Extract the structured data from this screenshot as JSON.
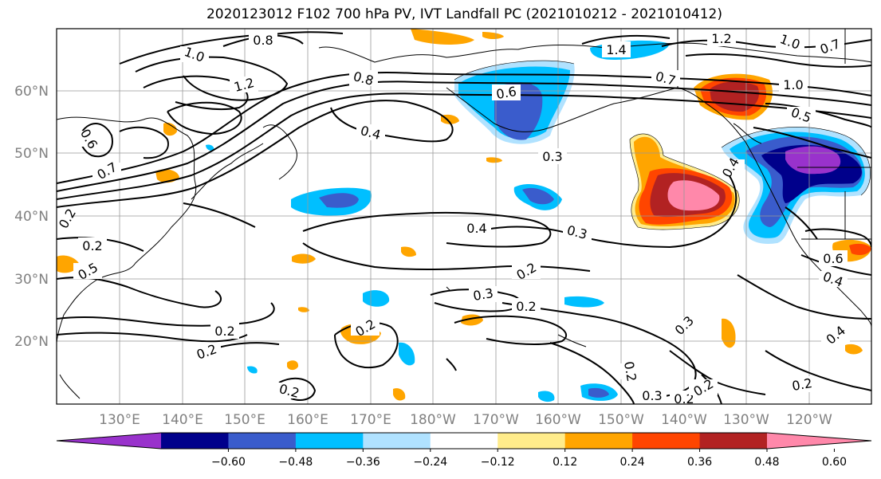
{
  "title": "2020123012 F102 700 hPa PV, IVT Landfall PC (2021010212 - 2021010412)",
  "latitude_labels": [
    "60°N",
    "50°N",
    "40°N",
    "30°N",
    "20°N"
  ],
  "longitude_labels": [
    "130°E",
    "140°E",
    "150°E",
    "160°E",
    "170°E",
    "180°W",
    "170°W",
    "160°W",
    "150°W",
    "140°W",
    "130°W",
    "120°W"
  ],
  "colorbar": {
    "tick_labels": [
      "−0.60",
      "−0.48",
      "−0.36",
      "−0.24",
      "−0.12",
      "0.12",
      "0.24",
      "0.36",
      "0.48",
      "0.60"
    ],
    "colors": [
      "#9932cc",
      "#00008b",
      "#3a5ccc",
      "#00bfff",
      "#b0e2ff",
      "#ffffff",
      "#ffec8b",
      "#ffa500",
      "#ff4500",
      "#b22222",
      "#ff88aa"
    ]
  },
  "contour_labels": [
    "0.8",
    "1.0",
    "1.2",
    "0.8",
    "0.6",
    "0.4",
    "0.3",
    "1.4",
    "1.2",
    "1.0",
    "0.7",
    "0.7",
    "1.0",
    "0.5",
    "0.4",
    "0.4",
    "0.3",
    "0.6",
    "0.4",
    "0.2",
    "0.3",
    "0.2",
    "0.2",
    "0.2",
    "0.2",
    "0.2",
    "0.3",
    "0.2",
    "0.3",
    "0.2",
    "0.2",
    "0.2",
    "0.4",
    "0.2",
    "0.5",
    "0.6",
    "0.7",
    "0.2"
  ]
}
